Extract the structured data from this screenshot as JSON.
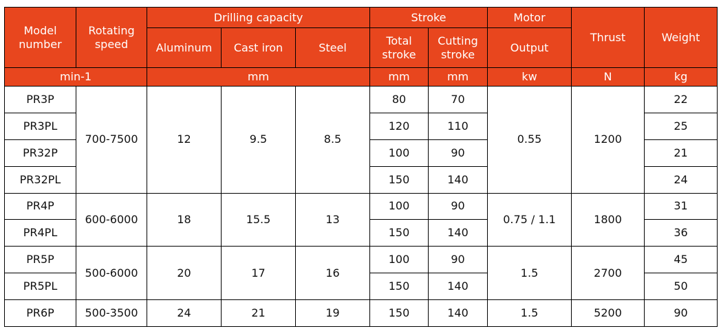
{
  "header": {
    "model_number": "Model number",
    "rotating_speed": "Rotating speed",
    "drilling_capacity": "Drilling capacity",
    "aluminum": "Aluminum",
    "cast_iron": "Cast iron",
    "steel": "Steel",
    "stroke": "Stroke",
    "total_stroke": "Total stroke",
    "cutting_stroke": "Cutting stroke",
    "motor": "Motor",
    "output": "Output",
    "thrust": "Thrust",
    "weight": "Weight"
  },
  "units": {
    "speed": "min-1",
    "capacity": "mm",
    "total_stroke": "mm",
    "cutting_stroke": "mm",
    "output": "kw",
    "thrust": "N",
    "weight": "kg"
  },
  "groups": [
    {
      "speed": "700-7500",
      "aluminum": "12",
      "cast_iron": "9.5",
      "steel": "8.5",
      "output": "0.55",
      "thrust": "1200",
      "models": [
        {
          "model": "PR3P",
          "total": "80",
          "cutting": "70",
          "weight": "22"
        },
        {
          "model": "PR3PL",
          "total": "120",
          "cutting": "110",
          "weight": "25"
        },
        {
          "model": "PR32P",
          "total": "100",
          "cutting": "90",
          "weight": "21"
        },
        {
          "model": "PR32PL",
          "total": "150",
          "cutting": "140",
          "weight": "24"
        }
      ]
    },
    {
      "speed": "600-6000",
      "aluminum": "18",
      "cast_iron": "15.5",
      "steel": "13",
      "output": "0.75 / 1.1",
      "thrust": "1800",
      "models": [
        {
          "model": "PR4P",
          "total": "100",
          "cutting": "90",
          "weight": "31"
        },
        {
          "model": "PR4PL",
          "total": "150",
          "cutting": "140",
          "weight": "36"
        }
      ]
    },
    {
      "speed": "500-6000",
      "aluminum": "20",
      "cast_iron": "17",
      "steel": "16",
      "output": "1.5",
      "thrust": "2700",
      "models": [
        {
          "model": "PR5P",
          "total": "100",
          "cutting": "90",
          "weight": "45"
        },
        {
          "model": "PR5PL",
          "total": "150",
          "cutting": "140",
          "weight": "50"
        }
      ]
    },
    {
      "speed": "500-3500",
      "aluminum": "24",
      "cast_iron": "21",
      "steel": "19",
      "output": "1.5",
      "thrust": "5200",
      "models": [
        {
          "model": "PR6P",
          "total": "150",
          "cutting": "140",
          "weight": "90"
        }
      ]
    }
  ]
}
